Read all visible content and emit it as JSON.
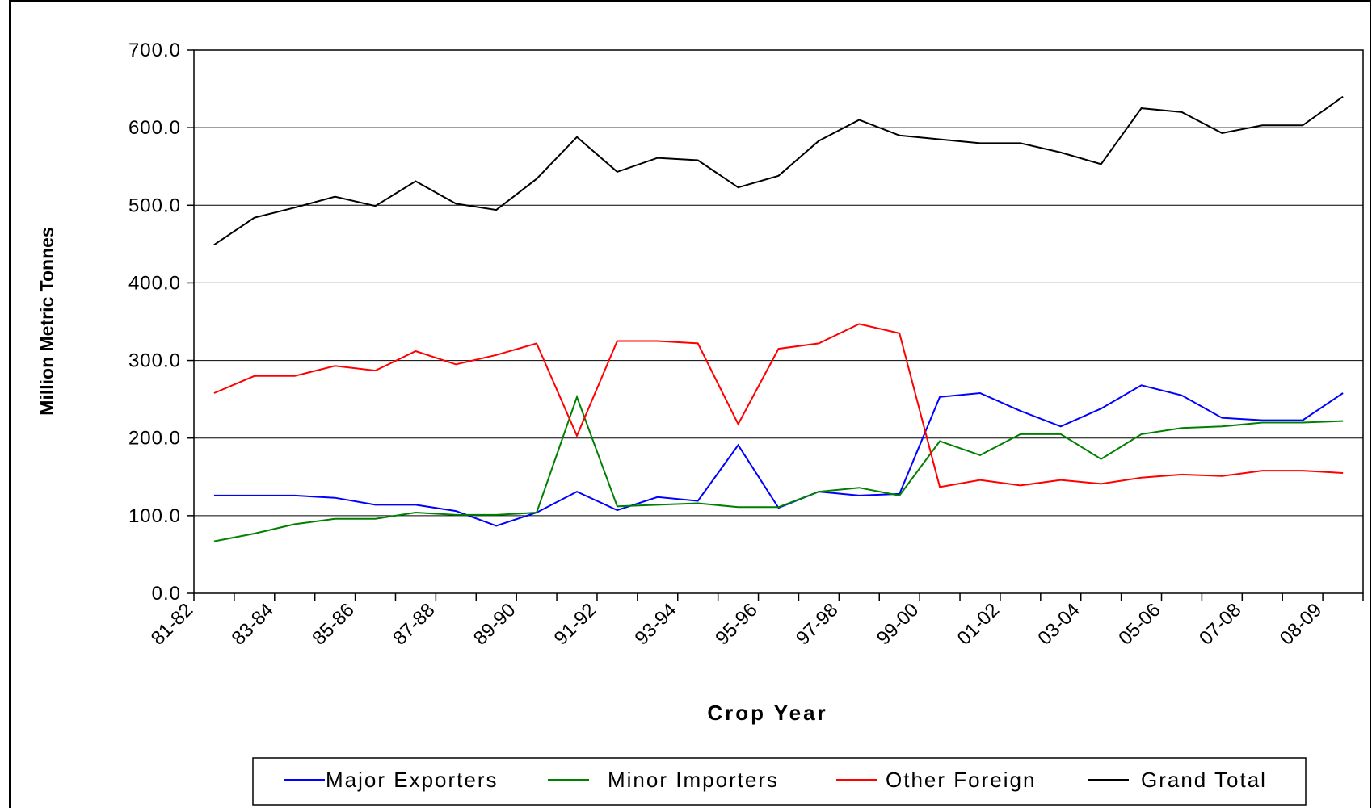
{
  "chart_data": {
    "type": "line",
    "xlabel": "Crop Year",
    "ylabel": "Million Metric Tonnes",
    "categories": [
      "81-82",
      null,
      "83-84",
      null,
      "85-86",
      null,
      "87-88",
      null,
      "89-90",
      null,
      "91-92",
      null,
      "93-94",
      null,
      "95-96",
      null,
      "97-98",
      null,
      "99-00",
      null,
      "01-02",
      null,
      "03-04",
      null,
      "05-06",
      null,
      "07-08",
      null,
      "08-09"
    ],
    "series": [
      {
        "name": "Major Exporters",
        "color": "#0000ff",
        "values": [
          126,
          126,
          126,
          123,
          114,
          114,
          106,
          87,
          104,
          131,
          107,
          124,
          119,
          191,
          110,
          131,
          126,
          128,
          253,
          258,
          235,
          215,
          238,
          268,
          255,
          226,
          223,
          223,
          258
        ]
      },
      {
        "name": "Minor Importers",
        "color": "#008000",
        "values": [
          67,
          77,
          89,
          96,
          96,
          104,
          101,
          101,
          104,
          253,
          112,
          114,
          116,
          111,
          111,
          131,
          136,
          126,
          196,
          178,
          205,
          205,
          173,
          205,
          213,
          215,
          220,
          220,
          222
        ]
      },
      {
        "name": "Other Foreign",
        "color": "#ff0000",
        "values": [
          258,
          280,
          280,
          293,
          287,
          312,
          295,
          307,
          322,
          203,
          325,
          325,
          322,
          218,
          315,
          322,
          347,
          335,
          137,
          146,
          139,
          146,
          141,
          149,
          153,
          151,
          158,
          158,
          155
        ]
      },
      {
        "name": "Grand Total",
        "color": "#000000",
        "values": [
          449,
          484,
          497,
          511,
          499,
          531,
          502,
          494,
          534,
          588,
          543,
          561,
          558,
          523,
          538,
          583,
          610,
          590,
          585,
          580,
          580,
          568,
          553,
          625,
          620,
          593,
          603,
          603,
          640
        ]
      }
    ],
    "ylim": [
      0,
      700
    ],
    "yticks": [
      {
        "value": 0,
        "label": "0.0"
      },
      {
        "value": 100,
        "label": "100.0"
      },
      {
        "value": 200,
        "label": "200.0"
      },
      {
        "value": 300,
        "label": "300.0"
      },
      {
        "value": 400,
        "label": "400.0"
      },
      {
        "value": 500,
        "label": "500.0"
      },
      {
        "value": 600,
        "label": "600.0"
      },
      {
        "value": 700,
        "label": "700.0"
      }
    ],
    "grid": true,
    "legend": "bottom"
  }
}
